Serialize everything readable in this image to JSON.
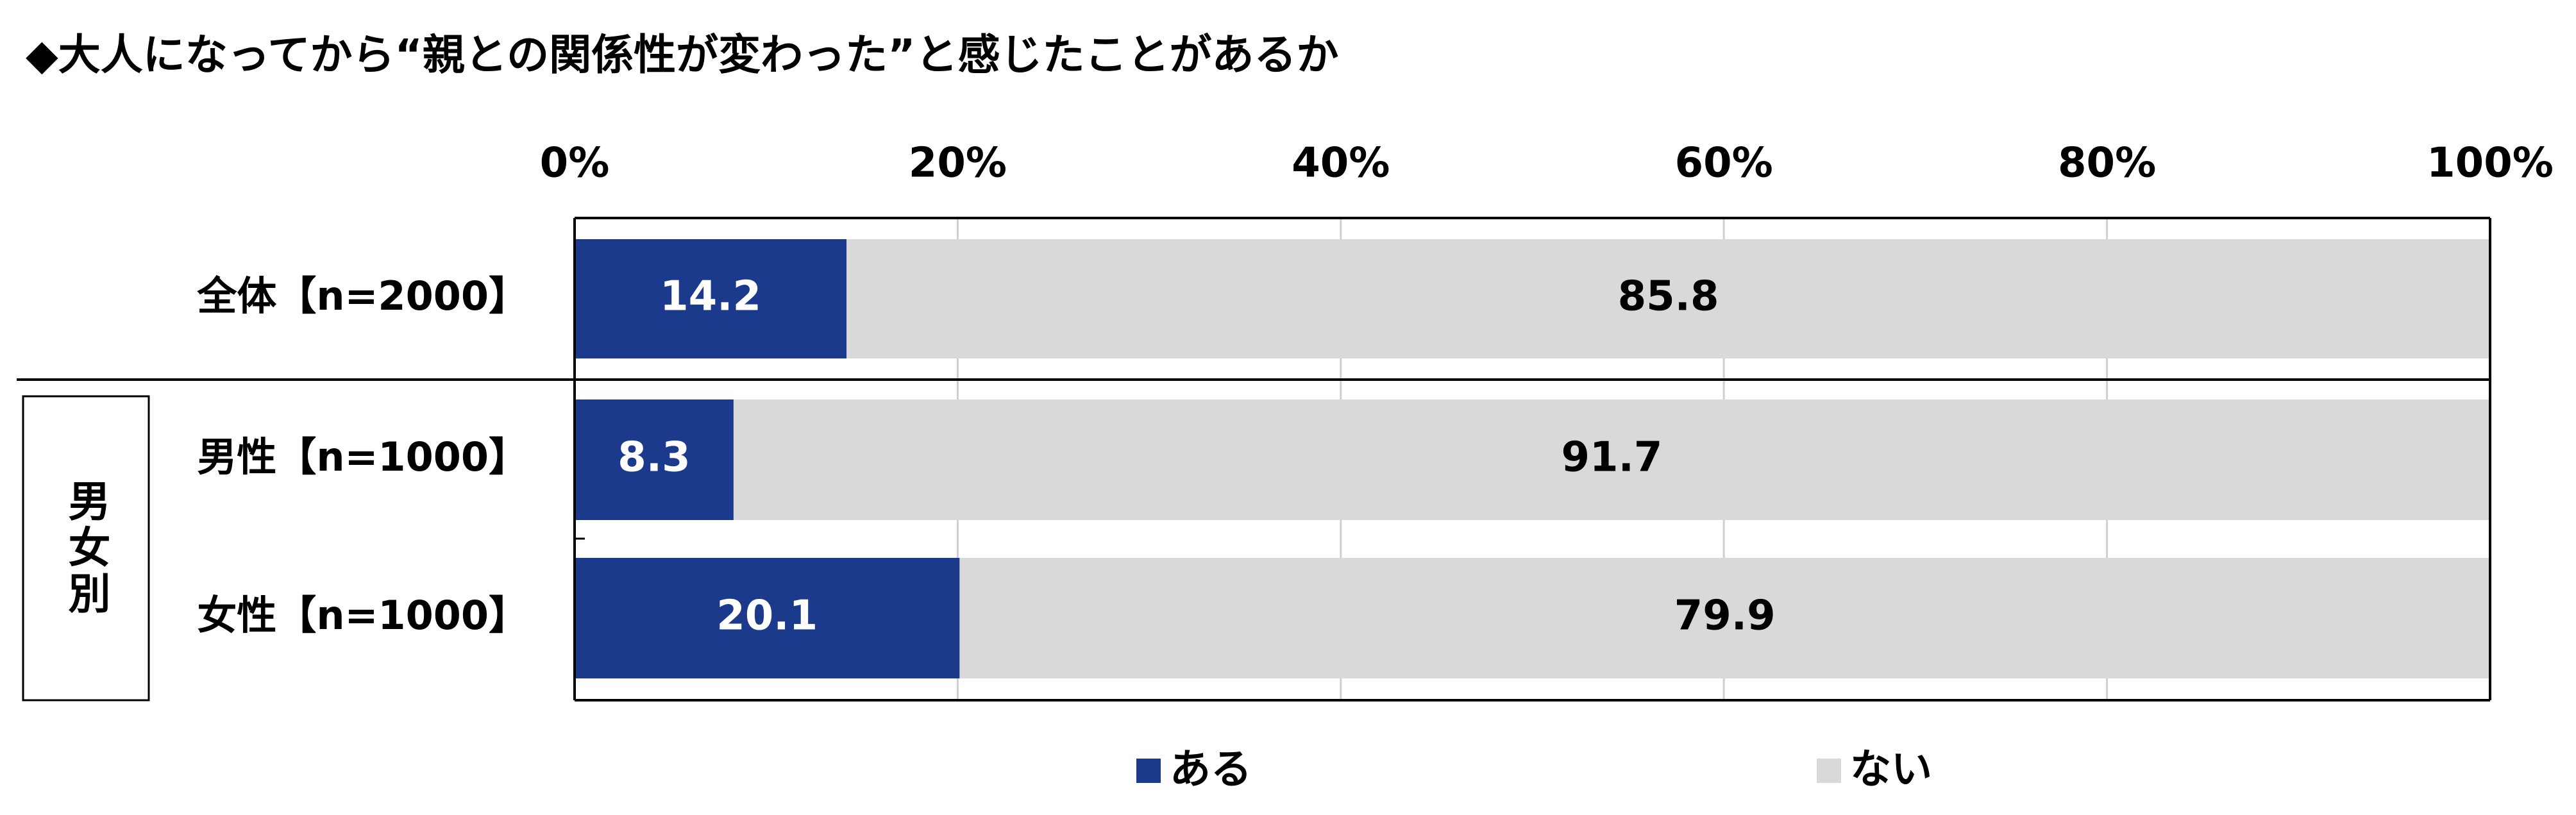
{
  "chart_data": {
    "type": "stacked_barh",
    "title": "◆大人になってから“親との関係性が変わった”と感じたことがあるか",
    "categories": [
      "全体【n=2000】",
      "男性【n=1000】",
      "女性【n=1000】"
    ],
    "group_label": "男女別",
    "series": [
      {
        "name": "ある",
        "color": "#1b3a8c",
        "values": [
          14.2,
          8.3,
          20.1
        ]
      },
      {
        "name": "ない",
        "color": "#d9d9d9",
        "values": [
          85.8,
          91.7,
          79.9
        ]
      }
    ],
    "xlim": [
      0,
      100
    ],
    "xticks": [
      {
        "value": 0,
        "label": "0%"
      },
      {
        "value": 20,
        "label": "20%"
      },
      {
        "value": 40,
        "label": "40%"
      },
      {
        "value": 60,
        "label": "60%"
      },
      {
        "value": 80,
        "label": "80%"
      },
      {
        "value": 100,
        "label": "100%"
      }
    ],
    "grid": true
  }
}
